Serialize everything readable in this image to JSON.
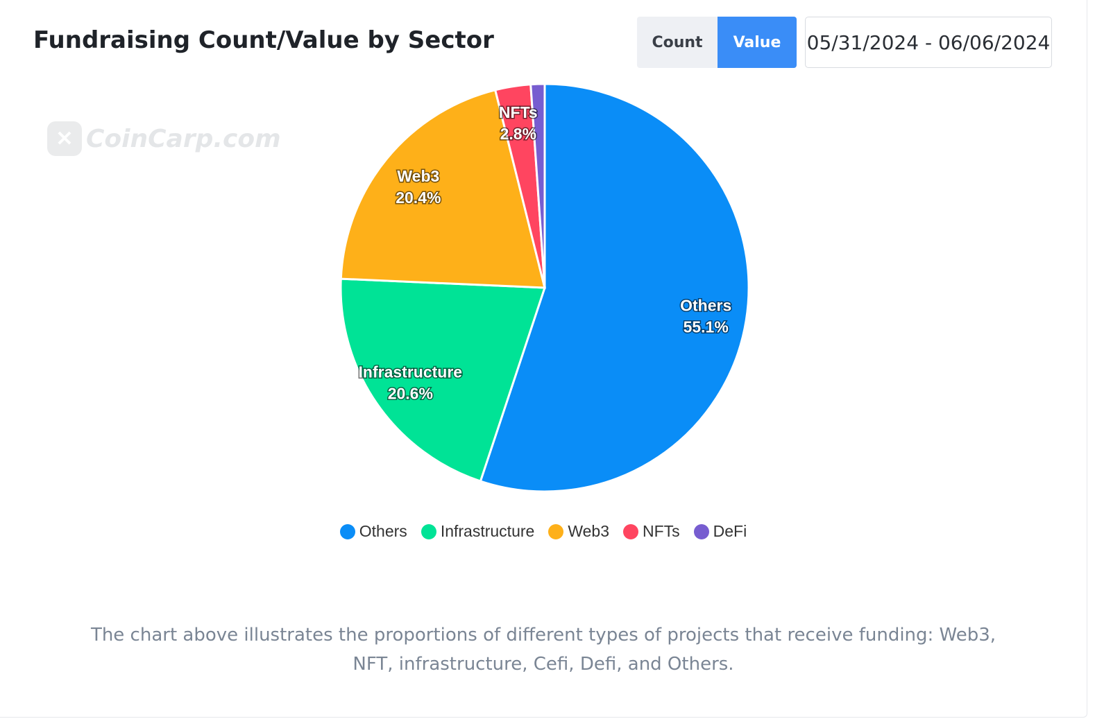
{
  "header": {
    "title": "Fundraising Count/Value by Sector",
    "toggle": {
      "count_label": "Count",
      "value_label": "Value",
      "selected": "Value"
    },
    "date_range": "05/31/2024 - 06/06/2024"
  },
  "watermark": {
    "text": "CoinCarp.com"
  },
  "chart_data": {
    "type": "pie",
    "categories": [
      "Others",
      "Infrastructure",
      "Web3",
      "NFTs",
      "DeFi"
    ],
    "values": [
      55.1,
      20.6,
      20.4,
      2.8,
      1.1
    ],
    "labels": [
      "55.1%",
      "20.6%",
      "20.4%",
      "2.8%",
      ""
    ],
    "colors": [
      "#0a8df7",
      "#00e396",
      "#feb019",
      "#ff4560",
      "#775dd0"
    ],
    "legend_position": "bottom"
  },
  "description": "The chart above illustrates the proportions of different types of projects that receive funding: Web3, NFT, infrastructure, Cefi, Defi, and Others."
}
